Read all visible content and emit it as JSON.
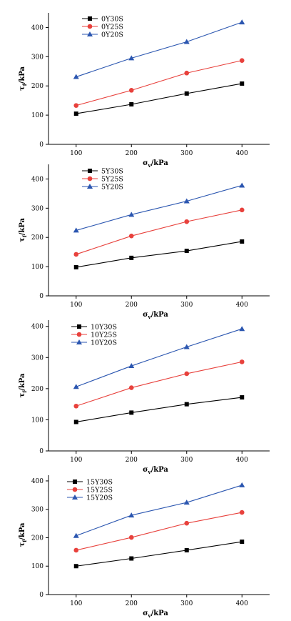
{
  "chart_data": [
    {
      "type": "line",
      "x": [
        100,
        200,
        300,
        400
      ],
      "xlim": [
        50,
        450
      ],
      "ylim": [
        0,
        450
      ],
      "xticks": [
        100,
        200,
        300,
        400
      ],
      "yticks": [
        0,
        100,
        200,
        300,
        400
      ],
      "xlabel": "σv/kPa",
      "ylabel": "τf/kPa",
      "legend_position": "top-left",
      "series": [
        {
          "name": "0Y30S",
          "color": "#000000",
          "marker": "square",
          "values": [
            105,
            137,
            174,
            208
          ]
        },
        {
          "name": "0Y25S",
          "color": "#e8413c",
          "marker": "circle",
          "values": [
            133,
            185,
            244,
            287
          ]
        },
        {
          "name": "0Y20S",
          "color": "#2b56b0",
          "marker": "triangle",
          "values": [
            231,
            295,
            351,
            418
          ]
        }
      ]
    },
    {
      "type": "line",
      "x": [
        100,
        200,
        300,
        400
      ],
      "xlim": [
        50,
        450
      ],
      "ylim": [
        0,
        450
      ],
      "xticks": [
        100,
        200,
        300,
        400
      ],
      "yticks": [
        0,
        100,
        200,
        300,
        400
      ],
      "xlabel": "σv/kPa",
      "ylabel": "τf/kPa",
      "legend_position": "top-left",
      "series": [
        {
          "name": "5Y30S",
          "color": "#000000",
          "marker": "square",
          "values": [
            98,
            130,
            154,
            186
          ]
        },
        {
          "name": "5Y25S",
          "color": "#e8413c",
          "marker": "circle",
          "values": [
            142,
            205,
            254,
            294
          ]
        },
        {
          "name": "5Y20S",
          "color": "#2b56b0",
          "marker": "triangle",
          "values": [
            224,
            278,
            324,
            378
          ]
        }
      ]
    },
    {
      "type": "line",
      "x": [
        100,
        200,
        300,
        400
      ],
      "xlim": [
        50,
        450
      ],
      "ylim": [
        0,
        420
      ],
      "xticks": [
        100,
        200,
        300,
        400
      ],
      "yticks": [
        0,
        100,
        200,
        300,
        400
      ],
      "xlabel": "σv/kPa",
      "ylabel": "τf/kPa",
      "legend_position": "top-left",
      "series": [
        {
          "name": "10Y30S",
          "color": "#000000",
          "marker": "square",
          "values": [
            93,
            123,
            150,
            172
          ]
        },
        {
          "name": "10Y25S",
          "color": "#e8413c",
          "marker": "circle",
          "values": [
            144,
            203,
            248,
            286
          ]
        },
        {
          "name": "10Y20S",
          "color": "#2b56b0",
          "marker": "triangle",
          "values": [
            206,
            273,
            334,
            392
          ]
        }
      ]
    },
    {
      "type": "line",
      "x": [
        100,
        200,
        300,
        400
      ],
      "xlim": [
        50,
        450
      ],
      "ylim": [
        0,
        420
      ],
      "xticks": [
        100,
        200,
        300,
        400
      ],
      "yticks": [
        0,
        100,
        200,
        300,
        400
      ],
      "xlabel": "σv/kPa",
      "ylabel": "τf/kPa",
      "legend_position": "top-left",
      "series": [
        {
          "name": "15Y30S",
          "color": "#000000",
          "marker": "square",
          "values": [
            100,
            127,
            156,
            186
          ]
        },
        {
          "name": "15Y25S",
          "color": "#e8413c",
          "marker": "circle",
          "values": [
            156,
            201,
            251,
            289
          ]
        },
        {
          "name": "15Y20S",
          "color": "#2b56b0",
          "marker": "triangle",
          "values": [
            207,
            279,
            324,
            385
          ]
        }
      ]
    }
  ]
}
